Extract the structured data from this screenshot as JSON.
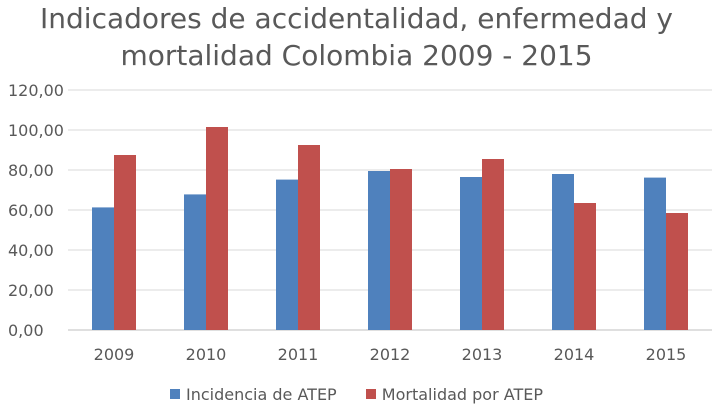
{
  "chart_data": {
    "type": "bar",
    "title_line1": "Indicadores de accidentalidad, enfermedad y",
    "title_line2": "mortalidad Colombia 2009 - 2015",
    "categories": [
      "2009",
      "2010",
      "2011",
      "2012",
      "2013",
      "2014",
      "2015"
    ],
    "series": [
      {
        "name": "Incidencia de ATEP",
        "color": "#4f81bd",
        "values": [
          61.3,
          67.8,
          75.2,
          79.5,
          76.5,
          78.0,
          76.2
        ]
      },
      {
        "name": "Mortalidad por ATEP",
        "color": "#c0504d",
        "values": [
          87.5,
          101.5,
          92.5,
          80.5,
          85.5,
          63.5,
          58.5
        ]
      }
    ],
    "ylim": [
      0,
      120
    ],
    "yticks": [
      "0,00",
      "20,00",
      "40,00",
      "60,00",
      "80,00",
      "100,00",
      "120,00"
    ],
    "grid": true,
    "legend_position": "bottom",
    "gridline_color": "#d9d9d9"
  }
}
